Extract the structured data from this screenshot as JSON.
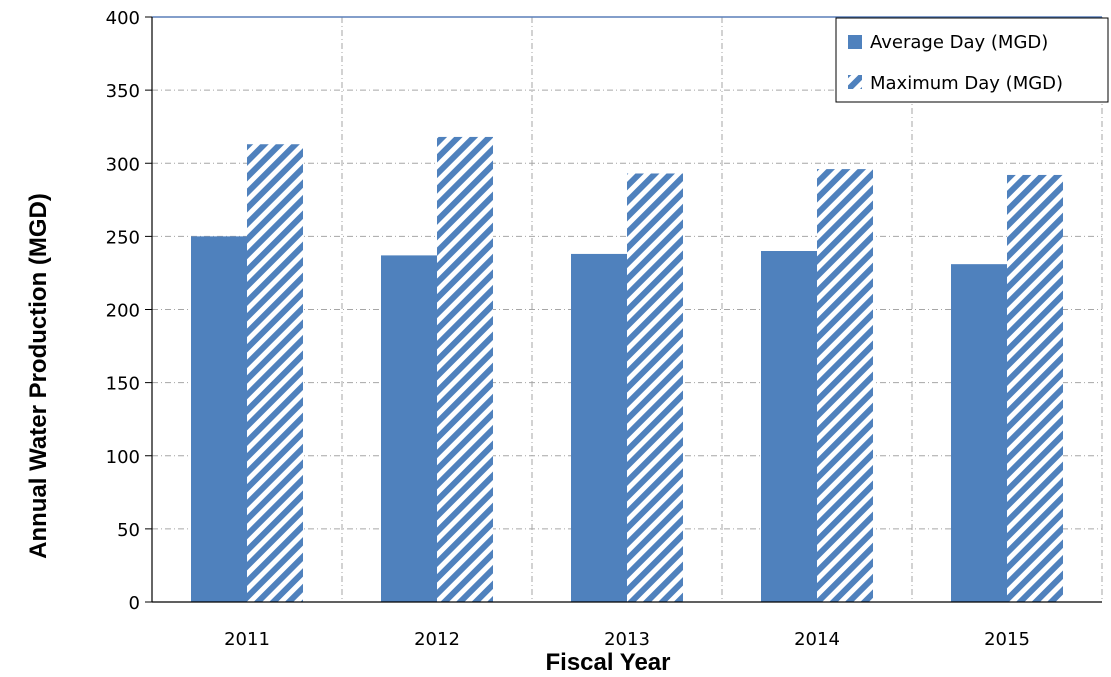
{
  "chart_data": {
    "type": "bar",
    "title": "",
    "xlabel": "Fiscal Year",
    "ylabel": "Annual Water Production (MGD)",
    "categories": [
      "2011",
      "2012",
      "2013",
      "2014",
      "2015"
    ],
    "series": [
      {
        "name": "Average Day (MGD)",
        "values": [
          250,
          237,
          238,
          240,
          231
        ],
        "color": "#4f81bd",
        "fill": "solid"
      },
      {
        "name": "Maximum Day (MGD)",
        "values": [
          313,
          318,
          293,
          296,
          292
        ],
        "color": "#4f81bd",
        "fill": "diagonal-stripes"
      }
    ],
    "ylim": [
      0,
      400
    ],
    "yticks": [
      "0",
      "50",
      "100",
      "150",
      "200",
      "250",
      "300",
      "350",
      "400"
    ],
    "grid": true,
    "legend": "top-right"
  }
}
